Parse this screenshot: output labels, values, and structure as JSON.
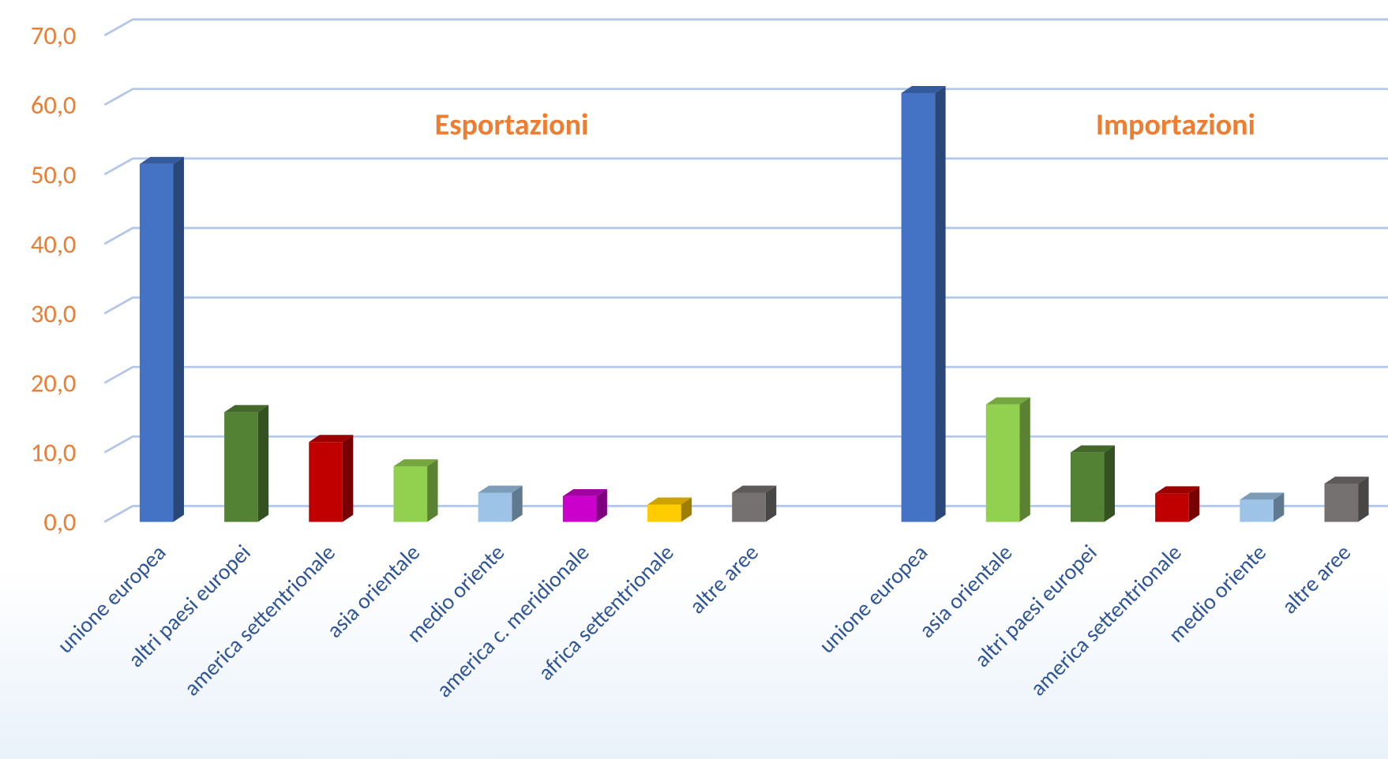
{
  "chart_data": {
    "type": "bar3d",
    "group_labels": [
      "Esportazioni",
      "Importazioni"
    ],
    "categories": [
      "unione europea",
      "altri paesi europei",
      "america settentrionale",
      "asia orientale",
      "medio oriente",
      "america c. meridionale",
      "africa settentrionale",
      "altre aree",
      null,
      "unione europea",
      "asia orientale",
      "altri paesi europei",
      "america settentrionale",
      "medio oriente",
      "altre aree"
    ],
    "values": [
      51.5,
      15.8,
      11.5,
      8.0,
      4.2,
      3.7,
      2.5,
      4.2,
      null,
      61.7,
      16.9,
      10.0,
      4.1,
      3.2,
      5.5
    ],
    "colors": [
      "#4472c4",
      "#548235",
      "#c00000",
      "#92d050",
      "#9dc3e6",
      "#cc00cc",
      "#ffcc00",
      "#767171",
      null,
      "#4472c4",
      "#92d050",
      "#548235",
      "#c00000",
      "#9dc3e6",
      "#767171"
    ],
    "ylim": [
      0,
      70
    ],
    "yticks": [
      {
        "value": 0,
        "label": "0,0"
      },
      {
        "value": 10,
        "label": "10,0"
      },
      {
        "value": 20,
        "label": "20,0"
      },
      {
        "value": 30,
        "label": "30,0"
      },
      {
        "value": 40,
        "label": "40,0"
      },
      {
        "value": 50,
        "label": "50,0"
      },
      {
        "value": 60,
        "label": "60,0"
      },
      {
        "value": 70,
        "label": "70,0"
      }
    ],
    "grid": true
  }
}
